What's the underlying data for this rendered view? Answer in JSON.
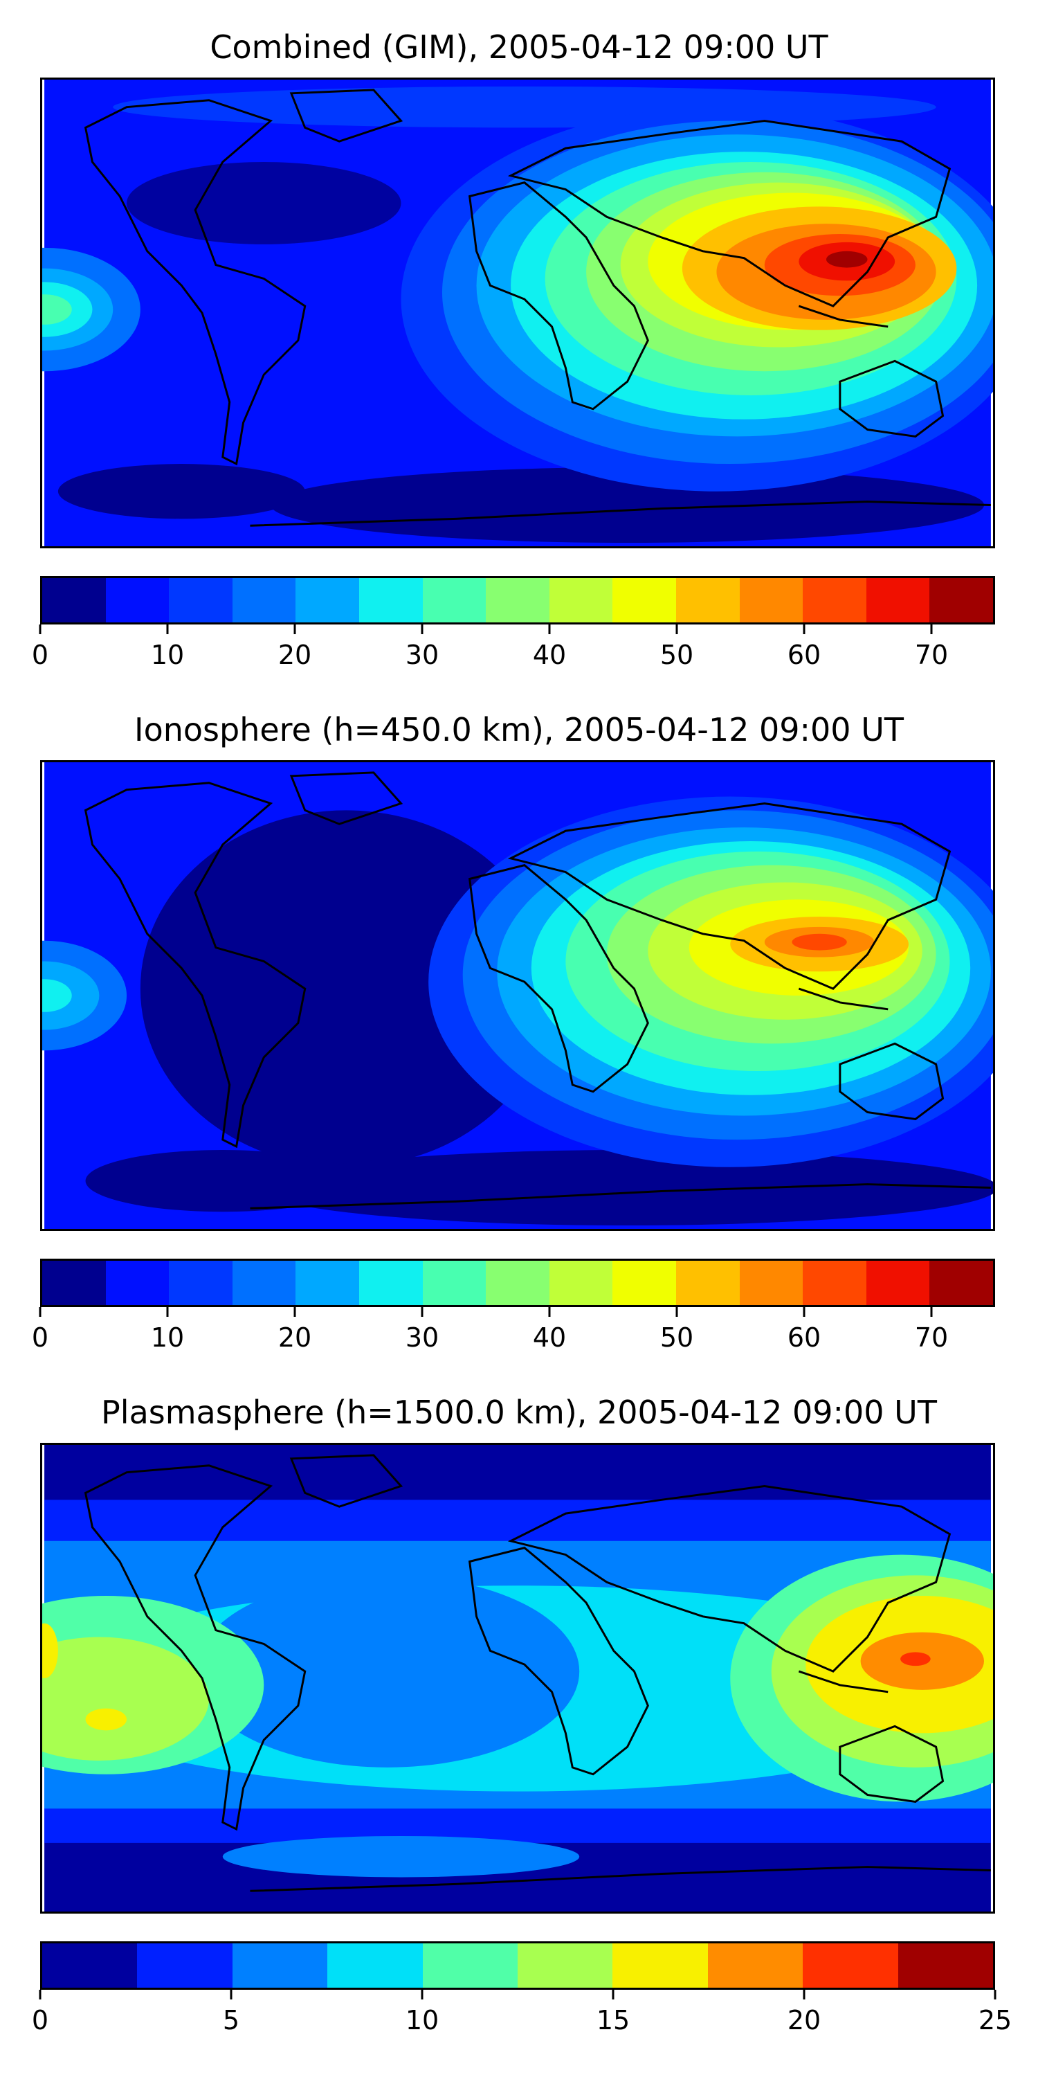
{
  "panels": [
    {
      "title": "Combined (GIM), 2005-04-12 09:00 UT",
      "colorbar": {
        "min": 0,
        "max": 75,
        "ticks": [
          "0",
          "10",
          "20",
          "30",
          "40",
          "50",
          "60",
          "70"
        ],
        "tick_values": [
          0,
          10,
          20,
          30,
          40,
          50,
          60,
          70
        ],
        "colors": [
          "#00008f",
          "#0010ff",
          "#0038ff",
          "#0070ff",
          "#00a8ff",
          "#10f0f0",
          "#48ffb0",
          "#88ff70",
          "#c0ff38",
          "#f0ff00",
          "#ffc000",
          "#ff8800",
          "#ff4800",
          "#f01000",
          "#a00000"
        ]
      }
    },
    {
      "title": "Ionosphere  (h=450.0 km), 2005-04-12 09:00 UT",
      "colorbar": {
        "min": 0,
        "max": 75,
        "ticks": [
          "0",
          "10",
          "20",
          "30",
          "40",
          "50",
          "60",
          "70"
        ],
        "tick_values": [
          0,
          10,
          20,
          30,
          40,
          50,
          60,
          70
        ],
        "colors": [
          "#00008f",
          "#0010ff",
          "#0038ff",
          "#0070ff",
          "#00a8ff",
          "#10f0f0",
          "#48ffb0",
          "#88ff70",
          "#c0ff38",
          "#f0ff00",
          "#ffc000",
          "#ff8800",
          "#ff4800",
          "#f01000",
          "#a00000"
        ]
      }
    },
    {
      "title": "Plasmasphere (h=1500.0 km), 2005-04-12 09:00 UT",
      "colorbar": {
        "min": 0,
        "max": 25,
        "ticks": [
          "0",
          "5",
          "10",
          "15",
          "20",
          "25"
        ],
        "tick_values": [
          0,
          5,
          10,
          15,
          20,
          25
        ],
        "colors": [
          "#00009f",
          "#0020ff",
          "#0080ff",
          "#00e0f8",
          "#50ffa8",
          "#a8ff50",
          "#f8f000",
          "#ff8c00",
          "#ff3000",
          "#a00000"
        ]
      }
    }
  ]
}
